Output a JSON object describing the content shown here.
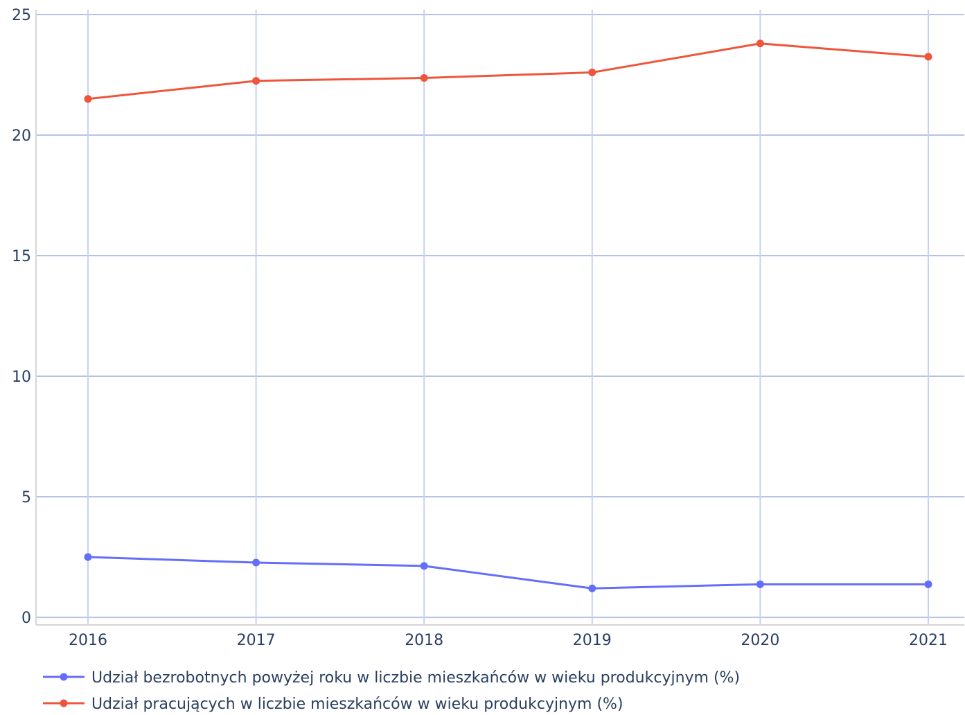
{
  "chart_data": {
    "type": "line",
    "x": [
      "2016",
      "2017",
      "2018",
      "2019",
      "2020",
      "2021"
    ],
    "ylim": [
      0,
      25
    ],
    "y_ticks": [
      "0",
      "5",
      "10",
      "15",
      "20",
      "25"
    ],
    "grid": true,
    "legend_placement": "bottom-left",
    "series": [
      {
        "name": "Udział bezrobotnych powyżej roku w liczbie mieszkańców w wieku produkcyjnym (%)",
        "color": "#636efa",
        "values": [
          2.5,
          2.27,
          2.13,
          1.2,
          1.37,
          1.37
        ]
      },
      {
        "name": "Udział pracujących w liczbie mieszkańców w wieku produkcyjnym (%)",
        "color": "#ef553b",
        "values": [
          21.5,
          22.25,
          22.37,
          22.6,
          23.8,
          23.25
        ]
      }
    ]
  }
}
